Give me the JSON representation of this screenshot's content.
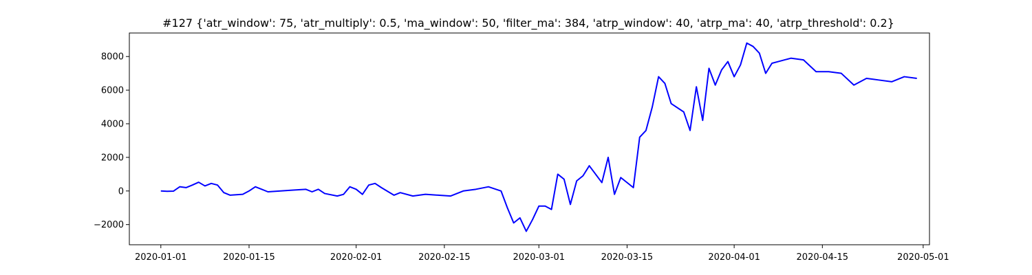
{
  "chart_data": {
    "type": "line",
    "title": "#127 {'atr_window': 75, 'atr_multiply': 0.5, 'ma_window': 50, 'filter_ma': 384, 'atrp_window': 40, 'atrp_ma': 40, 'atrp_threshold': 0.2}",
    "xlabel": "",
    "ylabel": "",
    "x_type": "date",
    "xlim": [
      "2019-12-27",
      "2020-05-02"
    ],
    "ylim": [
      -3200,
      9400
    ],
    "grid": false,
    "x_ticks": [
      {
        "value": "2020-01-01",
        "label": "2020-01-01"
      },
      {
        "value": "2020-01-15",
        "label": "2020-01-15"
      },
      {
        "value": "2020-02-01",
        "label": "2020-02-01"
      },
      {
        "value": "2020-02-15",
        "label": "2020-02-15"
      },
      {
        "value": "2020-03-01",
        "label": "2020-03-01"
      },
      {
        "value": "2020-03-15",
        "label": "2020-03-15"
      },
      {
        "value": "2020-04-01",
        "label": "2020-04-01"
      },
      {
        "value": "2020-04-15",
        "label": "2020-04-15"
      },
      {
        "value": "2020-05-01",
        "label": "2020-05-01"
      }
    ],
    "y_ticks": [
      {
        "value": -2000,
        "label": "−2000"
      },
      {
        "value": 0,
        "label": "0"
      },
      {
        "value": 2000,
        "label": "2000"
      },
      {
        "value": 4000,
        "label": "4000"
      },
      {
        "value": 6000,
        "label": "6000"
      },
      {
        "value": 8000,
        "label": "8000"
      }
    ],
    "series": [
      {
        "color": "#0000ff",
        "points": [
          [
            "2020-01-01",
            0
          ],
          [
            "2020-01-02",
            -20
          ],
          [
            "2020-01-03",
            -10
          ],
          [
            "2020-01-04",
            250
          ],
          [
            "2020-01-05",
            200
          ],
          [
            "2020-01-06",
            350
          ],
          [
            "2020-01-07",
            520
          ],
          [
            "2020-01-08",
            300
          ],
          [
            "2020-01-09",
            450
          ],
          [
            "2020-01-10",
            350
          ],
          [
            "2020-01-11",
            -100
          ],
          [
            "2020-01-12",
            -250
          ],
          [
            "2020-01-14",
            -200
          ],
          [
            "2020-01-15",
            0
          ],
          [
            "2020-01-16",
            250
          ],
          [
            "2020-01-17",
            100
          ],
          [
            "2020-01-18",
            -50
          ],
          [
            "2020-01-20",
            0
          ],
          [
            "2020-01-22",
            50
          ],
          [
            "2020-01-24",
            100
          ],
          [
            "2020-01-25",
            -50
          ],
          [
            "2020-01-26",
            100
          ],
          [
            "2020-01-27",
            -150
          ],
          [
            "2020-01-29",
            -300
          ],
          [
            "2020-01-30",
            -200
          ],
          [
            "2020-01-31",
            250
          ],
          [
            "2020-02-01",
            100
          ],
          [
            "2020-02-02",
            -200
          ],
          [
            "2020-02-03",
            350
          ],
          [
            "2020-02-04",
            450
          ],
          [
            "2020-02-05",
            200
          ],
          [
            "2020-02-07",
            -250
          ],
          [
            "2020-02-08",
            -100
          ],
          [
            "2020-02-10",
            -300
          ],
          [
            "2020-02-12",
            -200
          ],
          [
            "2020-02-14",
            -250
          ],
          [
            "2020-02-16",
            -300
          ],
          [
            "2020-02-18",
            0
          ],
          [
            "2020-02-20",
            100
          ],
          [
            "2020-02-22",
            250
          ],
          [
            "2020-02-24",
            0
          ],
          [
            "2020-02-25",
            -1000
          ],
          [
            "2020-02-26",
            -1900
          ],
          [
            "2020-02-27",
            -1600
          ],
          [
            "2020-02-28",
            -2400
          ],
          [
            "2020-02-29",
            -1700
          ],
          [
            "2020-03-01",
            -900
          ],
          [
            "2020-03-02",
            -900
          ],
          [
            "2020-03-03",
            -1100
          ],
          [
            "2020-03-04",
            1000
          ],
          [
            "2020-03-05",
            700
          ],
          [
            "2020-03-06",
            -800
          ],
          [
            "2020-03-07",
            600
          ],
          [
            "2020-03-08",
            900
          ],
          [
            "2020-03-09",
            1500
          ],
          [
            "2020-03-10",
            1000
          ],
          [
            "2020-03-11",
            500
          ],
          [
            "2020-03-12",
            2000
          ],
          [
            "2020-03-13",
            -200
          ],
          [
            "2020-03-14",
            800
          ],
          [
            "2020-03-16",
            200
          ],
          [
            "2020-03-17",
            3200
          ],
          [
            "2020-03-18",
            3600
          ],
          [
            "2020-03-19",
            5000
          ],
          [
            "2020-03-20",
            6800
          ],
          [
            "2020-03-21",
            6400
          ],
          [
            "2020-03-22",
            5200
          ],
          [
            "2020-03-24",
            4700
          ],
          [
            "2020-03-25",
            3600
          ],
          [
            "2020-03-26",
            6200
          ],
          [
            "2020-03-27",
            4200
          ],
          [
            "2020-03-28",
            7300
          ],
          [
            "2020-03-29",
            6300
          ],
          [
            "2020-03-30",
            7200
          ],
          [
            "2020-03-31",
            7700
          ],
          [
            "2020-04-01",
            6800
          ],
          [
            "2020-04-02",
            7500
          ],
          [
            "2020-04-03",
            8800
          ],
          [
            "2020-04-04",
            8600
          ],
          [
            "2020-04-05",
            8200
          ],
          [
            "2020-04-06",
            7000
          ],
          [
            "2020-04-07",
            7600
          ],
          [
            "2020-04-08",
            7700
          ],
          [
            "2020-04-10",
            7900
          ],
          [
            "2020-04-12",
            7800
          ],
          [
            "2020-04-14",
            7100
          ],
          [
            "2020-04-16",
            7100
          ],
          [
            "2020-04-18",
            7000
          ],
          [
            "2020-04-20",
            6300
          ],
          [
            "2020-04-22",
            6700
          ],
          [
            "2020-04-24",
            6600
          ],
          [
            "2020-04-26",
            6500
          ],
          [
            "2020-04-28",
            6800
          ],
          [
            "2020-04-30",
            6700
          ]
        ]
      }
    ]
  }
}
